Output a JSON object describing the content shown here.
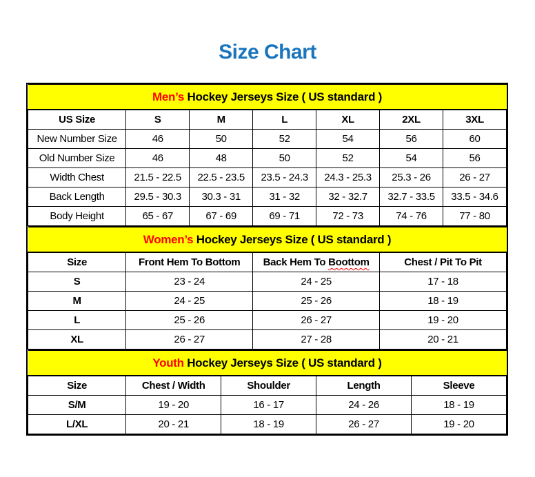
{
  "page": {
    "title": "Size Chart",
    "colors": {
      "title_blue": "#1B75BC",
      "section_header_yellow": "#FFFF00",
      "accent_red": "#FF0000",
      "border_black": "#000000",
      "background": "#FFFFFF"
    }
  },
  "tables": [
    {
      "id": "mens",
      "title_highlight": "Men’s",
      "title_rest": "Hockey Jerseys Size ( US standard )",
      "columns": [
        "US Size",
        "S",
        "M",
        "L",
        "XL",
        "2XL",
        "3XL"
      ],
      "rows": [
        {
          "label": "New Number Size",
          "values": [
            "46",
            "50",
            "52",
            "54",
            "56",
            "60"
          ]
        },
        {
          "label": "Old Number Size",
          "values": [
            "46",
            "48",
            "50",
            "52",
            "54",
            "56"
          ]
        },
        {
          "label": "Width Chest",
          "values": [
            "21.5 - 22.5",
            "22.5 - 23.5",
            "23.5 - 24.3",
            "24.3 - 25.3",
            "25.3 - 26",
            "26 - 27"
          ]
        },
        {
          "label": "Back Length",
          "values": [
            "29.5 - 30.3",
            "30.3 - 31",
            "31 - 32",
            "32 - 32.7",
            "32.7 - 33.5",
            "33.5 - 34.6"
          ]
        },
        {
          "label": "Body Height",
          "values": [
            "65 - 67",
            "67 - 69",
            "69 - 71",
            "72 - 73",
            "74 - 76",
            "77 - 80"
          ]
        }
      ]
    },
    {
      "id": "womens",
      "title_highlight": "Women’s",
      "title_rest": "Hockey Jerseys Size ( US standard )",
      "columns": [
        "Size",
        "Front Hem To Bottom",
        "Back Hem To Boottom",
        "Chest / Pit To Pit"
      ],
      "misspelled": {
        "column_index": 2,
        "text_before": "Back Hem To ",
        "misspelled_word": "Boottom"
      },
      "rows": [
        {
          "label": "S",
          "values": [
            "23 - 24",
            "24 - 25",
            "17 - 18"
          ]
        },
        {
          "label": "M",
          "values": [
            "24 - 25",
            "25 - 26",
            "18 - 19"
          ]
        },
        {
          "label": "L",
          "values": [
            "25 - 26",
            "26 - 27",
            "19 - 20"
          ]
        },
        {
          "label": "XL",
          "values": [
            "26 - 27",
            "27 - 28",
            "20 - 21"
          ]
        }
      ]
    },
    {
      "id": "youth",
      "title_highlight": "Youth",
      "title_rest": "Hockey Jerseys Size ( US standard )",
      "columns": [
        "Size",
        "Chest / Width",
        "Shoulder",
        "Length",
        "Sleeve"
      ],
      "rows": [
        {
          "label": "S/M",
          "values": [
            "19 - 20",
            "16 - 17",
            "24 - 26",
            "18 - 19"
          ]
        },
        {
          "label": "L/XL",
          "values": [
            "20 - 21",
            "18 - 19",
            "26 - 27",
            "19 - 20"
          ]
        }
      ]
    }
  ]
}
